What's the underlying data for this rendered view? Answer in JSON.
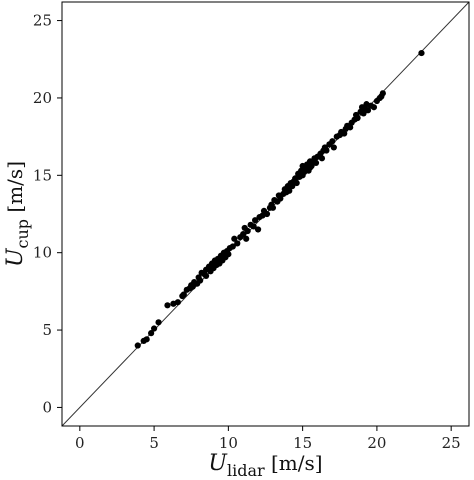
{
  "chart_data": {
    "type": "scatter",
    "title": "",
    "xlabel": {
      "main": "U",
      "sub": "lidar",
      "unit": " [m/s]"
    },
    "ylabel": {
      "main": "U",
      "sub": "cup",
      "unit": " [m/s]"
    },
    "xlim": [
      -1.2,
      26.2
    ],
    "ylim": [
      -1.2,
      26.2
    ],
    "xticks": [
      "0",
      "5",
      "10",
      "15",
      "20",
      "25"
    ],
    "yticks": [
      "0",
      "5",
      "10",
      "15",
      "20",
      "25"
    ],
    "grid": false,
    "reference_line": {
      "from": [
        -1.2,
        -1.2
      ],
      "to": [
        26.2,
        26.2
      ]
    },
    "marker_color": "#000000",
    "points": [
      [
        3.9,
        4.0
      ],
      [
        4.3,
        4.3
      ],
      [
        4.5,
        4.4
      ],
      [
        4.8,
        4.8
      ],
      [
        5.0,
        5.1
      ],
      [
        5.3,
        5.5
      ],
      [
        5.9,
        6.6
      ],
      [
        6.3,
        6.7
      ],
      [
        6.6,
        6.8
      ],
      [
        6.9,
        7.2
      ],
      [
        7.0,
        7.3
      ],
      [
        7.2,
        7.6
      ],
      [
        7.4,
        7.7
      ],
      [
        7.5,
        7.9
      ],
      [
        7.6,
        7.8
      ],
      [
        7.7,
        8.1
      ],
      [
        7.9,
        8.0
      ],
      [
        8.0,
        8.4
      ],
      [
        8.1,
        8.2
      ],
      [
        8.2,
        8.7
      ],
      [
        8.4,
        8.6
      ],
      [
        8.5,
        8.9
      ],
      [
        8.5,
        8.5
      ],
      [
        8.7,
        9.1
      ],
      [
        8.8,
        8.8
      ],
      [
        8.9,
        9.3
      ],
      [
        9.0,
        9.0
      ],
      [
        9.1,
        9.5
      ],
      [
        9.2,
        9.2
      ],
      [
        9.3,
        9.6
      ],
      [
        9.4,
        9.3
      ],
      [
        9.5,
        9.8
      ],
      [
        9.6,
        9.5
      ],
      [
        9.7,
        10.0
      ],
      [
        9.8,
        9.7
      ],
      [
        9.9,
        10.1
      ],
      [
        10.0,
        9.9
      ],
      [
        10.1,
        10.3
      ],
      [
        10.3,
        10.4
      ],
      [
        10.4,
        10.9
      ],
      [
        10.6,
        10.6
      ],
      [
        10.8,
        11.0
      ],
      [
        11.0,
        11.2
      ],
      [
        11.1,
        11.6
      ],
      [
        11.2,
        10.9
      ],
      [
        11.3,
        11.4
      ],
      [
        11.5,
        11.8
      ],
      [
        11.7,
        11.7
      ],
      [
        11.8,
        12.1
      ],
      [
        12.0,
        11.5
      ],
      [
        12.1,
        12.3
      ],
      [
        12.3,
        12.4
      ],
      [
        12.4,
        12.7
      ],
      [
        12.6,
        12.5
      ],
      [
        12.8,
        12.9
      ],
      [
        12.9,
        13.1
      ],
      [
        13.0,
        12.9
      ],
      [
        13.1,
        13.4
      ],
      [
        13.3,
        13.3
      ],
      [
        13.4,
        13.7
      ],
      [
        13.5,
        13.5
      ],
      [
        13.7,
        13.8
      ],
      [
        13.8,
        14.1
      ],
      [
        13.9,
        13.9
      ],
      [
        14.0,
        14.3
      ],
      [
        14.1,
        14.0
      ],
      [
        14.2,
        14.5
      ],
      [
        14.3,
        14.3
      ],
      [
        14.4,
        14.6
      ],
      [
        14.5,
        14.8
      ],
      [
        14.6,
        14.5
      ],
      [
        14.7,
        15.1
      ],
      [
        14.8,
        14.9
      ],
      [
        14.9,
        15.3
      ],
      [
        15.0,
        15.0
      ],
      [
        15.0,
        15.6
      ],
      [
        15.1,
        15.2
      ],
      [
        15.2,
        15.4
      ],
      [
        15.3,
        15.7
      ],
      [
        15.4,
        15.3
      ],
      [
        15.5,
        15.5
      ],
      [
        15.5,
        15.9
      ],
      [
        15.6,
        15.6
      ],
      [
        15.7,
        15.8
      ],
      [
        15.8,
        16.1
      ],
      [
        15.9,
        15.8
      ],
      [
        16.0,
        16.2
      ],
      [
        16.2,
        16.4
      ],
      [
        16.3,
        16.1
      ],
      [
        16.4,
        16.6
      ],
      [
        16.5,
        16.8
      ],
      [
        16.6,
        16.6
      ],
      [
        16.8,
        17.0
      ],
      [
        17.0,
        17.2
      ],
      [
        17.1,
        16.8
      ],
      [
        17.3,
        17.5
      ],
      [
        17.5,
        17.6
      ],
      [
        17.6,
        17.8
      ],
      [
        17.8,
        17.7
      ],
      [
        17.9,
        18.0
      ],
      [
        18.0,
        18.2
      ],
      [
        18.2,
        18.1
      ],
      [
        18.3,
        18.4
      ],
      [
        18.5,
        18.6
      ],
      [
        18.6,
        18.9
      ],
      [
        18.7,
        18.7
      ],
      [
        18.9,
        19.1
      ],
      [
        19.0,
        19.4
      ],
      [
        19.1,
        19.0
      ],
      [
        19.2,
        19.3
      ],
      [
        19.3,
        19.6
      ],
      [
        19.4,
        19.2
      ],
      [
        19.6,
        19.5
      ],
      [
        19.8,
        19.4
      ],
      [
        20.0,
        19.8
      ],
      [
        20.2,
        20.0
      ],
      [
        20.3,
        20.1
      ],
      [
        20.4,
        20.3
      ],
      [
        23.0,
        22.9
      ]
    ]
  }
}
